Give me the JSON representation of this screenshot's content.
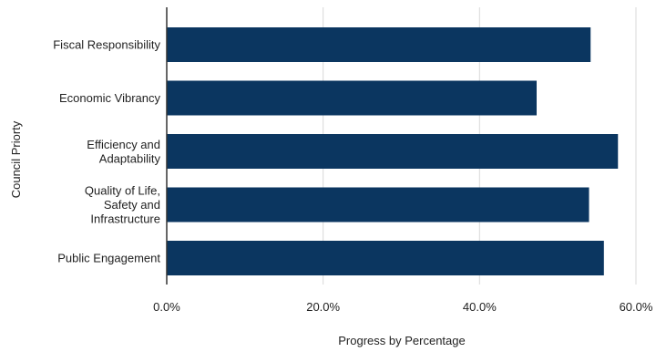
{
  "chart_data": {
    "type": "bar",
    "orientation": "horizontal",
    "categories": [
      "Fiscal Responsibility",
      "Economic Vibrancy",
      "Efficiency and Adaptability",
      "Quality of Life, Safety and Infrastructure",
      "Public Engagement"
    ],
    "category_lines": [
      [
        "Fiscal Responsibility"
      ],
      [
        "Economic Vibrancy"
      ],
      [
        "Efficiency and",
        "Adaptability"
      ],
      [
        "Quality of Life,",
        "Safety and",
        "Infrastructure"
      ],
      [
        "Public Engagement"
      ]
    ],
    "values": [
      54.2,
      47.3,
      57.7,
      54.0,
      55.9
    ],
    "xlabel": "Progress by Percentage",
    "ylabel": "Council Priorty",
    "xlim": [
      0,
      60
    ],
    "xticks": [
      0,
      20,
      40,
      60
    ],
    "xtick_labels": [
      "0.0%",
      "20.0%",
      "40.0%",
      "60.0%"
    ],
    "grid": "vertical",
    "legend": "none",
    "bar_color": "#0b3660",
    "grid_color": "#d9d9d9",
    "axis_color": "#333333"
  }
}
